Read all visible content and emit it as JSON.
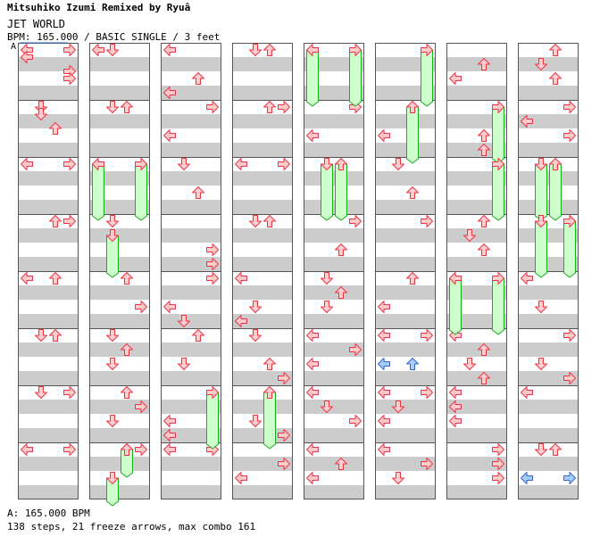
{
  "header": {
    "artist_line": "Mitsuhiko Izumi Remixed by Ryuâ",
    "title": "JET WORLD",
    "info": "BPM: 165.000 / BASIC SINGLE / 3 feet",
    "bpm_marker": "A"
  },
  "footer": {
    "bpm_legend": "A: 165.000 BPM",
    "summary": "138 steps, 21 freeze arrows, max combo 161"
  },
  "colors": {
    "stripe": "#cccccc",
    "border": "#555555",
    "arrow_fill": "#ffcccc",
    "arrow_stroke": "#ee3344",
    "freeze_fill": "#ccffcc",
    "freeze_stroke": "#22aa22",
    "shock_fill": "#aaccff",
    "shock_stroke": "#3366cc"
  },
  "chart_data": {
    "type": "step-chart",
    "lanes": [
      "left",
      "down",
      "up",
      "right"
    ],
    "columns": 8,
    "measures_per_column": 8,
    "rows_per_measure": 8,
    "notes": [
      [
        [
          0,
          0,
          0
        ],
        [
          0,
          0,
          2
        ],
        [
          0,
          0,
          3
        ],
        [
          0,
          0,
          5
        ],
        [
          0,
          1,
          3
        ],
        [
          0,
          1,
          5
        ],
        [
          0,
          2,
          0
        ],
        [
          0,
          2,
          4
        ],
        [
          0,
          3,
          1
        ],
        [
          0,
          3,
          7
        ],
        [
          0,
          4,
          0
        ],
        [
          0,
          4,
          2
        ],
        [
          0,
          5,
          4
        ],
        [
          0,
          5,
          6
        ],
        [
          0,
          6,
          2
        ],
        [
          0,
          6,
          4
        ],
        [
          0,
          7,
          0
        ],
        [
          0,
          7,
          7
        ]
      ],
      [
        [
          1,
          1,
          1
        ],
        [
          1,
          3,
          0
        ],
        [
          1,
          3,
          7
        ],
        [
          1,
          5,
          1
        ],
        [
          1,
          5,
          5
        ],
        [
          1,
          6,
          1
        ],
        [
          1,
          6,
          6
        ],
        [
          1,
          7,
          1
        ],
        [
          1,
          7,
          6
        ]
      ],
      [
        [
          2,
          0,
          0
        ],
        [
          2,
          0,
          5
        ],
        [
          2,
          2,
          1
        ],
        [
          2,
          2,
          7
        ],
        [
          2,
          3,
          5
        ],
        [
          2,
          4,
          2
        ],
        [
          2,
          4,
          6
        ],
        [
          2,
          5,
          5
        ],
        [
          2,
          5,
          6
        ],
        [
          2,
          6,
          3
        ],
        [
          2,
          6,
          7
        ],
        [
          2,
          7,
          3
        ],
        [
          2,
          7,
          6
        ]
      ],
      [
        [
          3,
          0,
          0
        ],
        [
          3,
          1,
          4
        ],
        [
          3,
          2,
          3
        ],
        [
          3,
          3,
          0
        ],
        [
          3,
          4,
          3
        ],
        [
          3,
          4,
          5
        ],
        [
          3,
          5,
          3
        ],
        [
          3,
          5,
          6
        ],
        [
          3,
          7,
          2
        ],
        [
          3,
          7,
          4
        ]
      ]
    ]
  }
}
